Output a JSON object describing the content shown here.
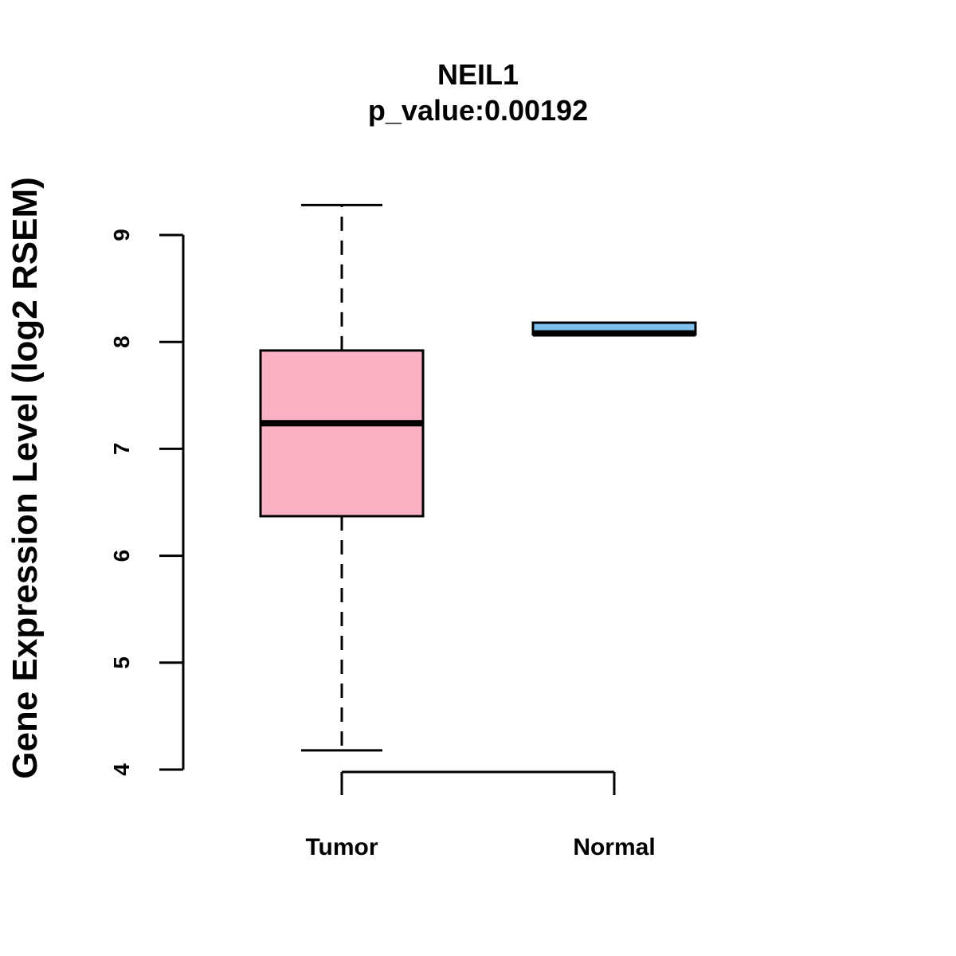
{
  "chart_data": {
    "type": "box",
    "title": "NEIL1",
    "subtitle": "p_value:0.00192",
    "xlabel": "",
    "ylabel": "Gene Expression Level (log2 RSEM)",
    "ylim": [
      4,
      9
    ],
    "yticks": [
      4,
      5,
      6,
      7,
      8,
      9
    ],
    "categories": [
      "Tumor",
      "Normal"
    ],
    "boxes": [
      {
        "category": "Tumor",
        "whisker_low": 4.18,
        "q1": 6.37,
        "median": 7.24,
        "q3": 7.92,
        "whisker_high": 9.28,
        "color": "#FBB1C4"
      },
      {
        "category": "Normal",
        "whisker_low": 8.07,
        "q1": 8.07,
        "median": 8.08,
        "q3": 8.18,
        "whisker_high": 8.18,
        "color": "#7EBFEF"
      }
    ],
    "grid": false,
    "legend": "none"
  }
}
